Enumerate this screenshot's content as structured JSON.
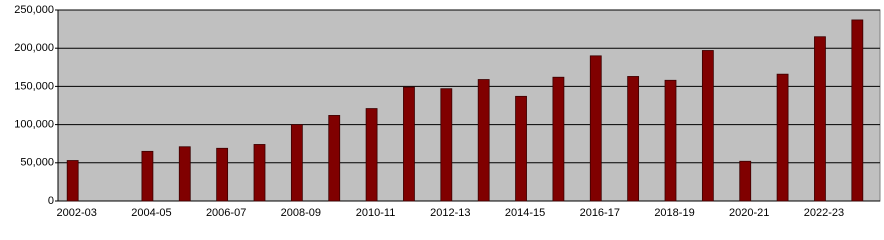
{
  "chart_data": {
    "type": "bar",
    "categories": [
      "2002-03",
      null,
      "2004-05",
      null,
      "2006-07",
      null,
      "2008-09",
      null,
      "2010-11",
      null,
      "2012-13",
      null,
      "2014-15",
      null,
      "2016-17",
      null,
      "2018-19",
      null,
      "2020-21",
      null,
      "2022-23",
      null
    ],
    "values": [
      53000,
      null,
      65000,
      71000,
      69000,
      74000,
      100000,
      112000,
      121000,
      149000,
      147000,
      159000,
      137000,
      162000,
      190000,
      163000,
      158000,
      197000,
      52000,
      166000,
      215000,
      237000
    ],
    "color": "#800000",
    "ylim": [
      0,
      250000
    ],
    "yticks": [
      0,
      {
        "value": 50000,
        "label": "50,000"
      },
      {
        "value": 100000,
        "label": "100,000"
      },
      {
        "value": 150000,
        "label": "150,000"
      },
      {
        "value": 200000,
        "label": "200,000"
      },
      {
        "value": 250000,
        "label": "250,000"
      }
    ],
    "grid": true
  }
}
